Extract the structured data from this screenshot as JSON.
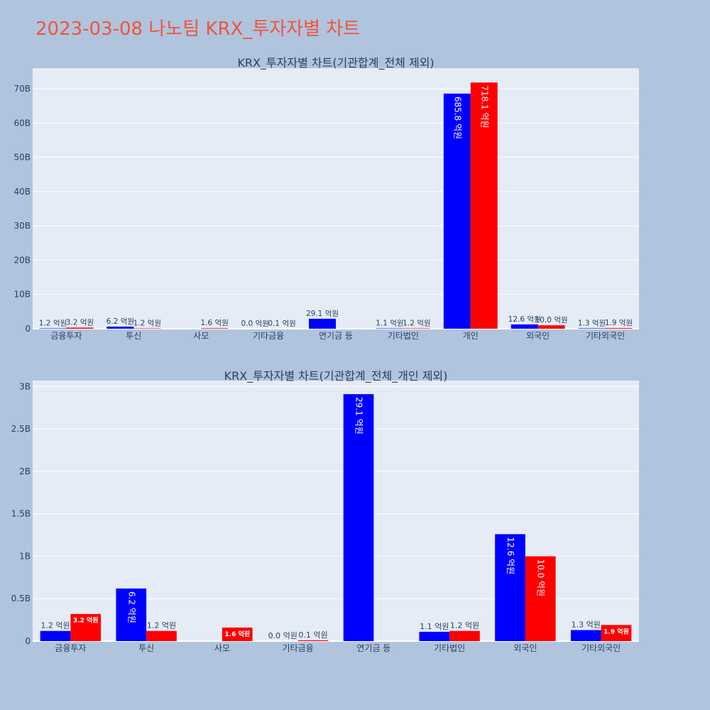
{
  "title": "2023-03-08 나노팀 KRX_투자자별 차트",
  "colors": {
    "page_bg": "#b0c4de",
    "plot_bg": "#e5ecf6",
    "sell": "#0000ff",
    "buy": "#ff0000",
    "title": "#ef553b",
    "text": "#2a3f5f"
  },
  "chart_data": [
    {
      "type": "bar",
      "title": "KRX_투자자별 차트(기관합계_전체 제외)",
      "categories": [
        "금융투자",
        "투신",
        "사모",
        "기타금융",
        "연기금 등",
        "기타법인",
        "개인",
        "외국인",
        "기타외국인"
      ],
      "ylim": [
        0,
        76000000000
      ],
      "yticks": [
        0,
        10000000000,
        20000000000,
        30000000000,
        40000000000,
        50000000000,
        60000000000,
        70000000000
      ],
      "ytick_labels": [
        "0",
        "10B",
        "20B",
        "30B",
        "40B",
        "50B",
        "60B",
        "70B"
      ],
      "grid": true,
      "series": [
        {
          "color": "#0000ff",
          "values": [
            120000000,
            620000000,
            null,
            0,
            2910000000,
            110000000,
            68580000000,
            1260000000,
            130000000
          ],
          "labels": [
            "1.2 억원",
            "6.2 억원",
            "",
            "0.0 억원",
            "29.1 억원",
            "1.1 억원",
            "685.8 억원",
            "12.6 억원",
            "1.3 억원"
          ]
        },
        {
          "color": "#ff0000",
          "values": [
            320000000,
            120000000,
            160000000,
            10000000,
            null,
            120000000,
            71810000000,
            1000000000,
            190000000
          ],
          "labels": [
            "3.2 억원",
            "1.2 억원",
            "1.6 억원",
            "0.1 억원",
            "",
            "1.2 억원",
            "718.1 억원",
            "10.0 억원",
            "1.9 억원"
          ]
        }
      ]
    },
    {
      "type": "bar",
      "title": "KRX_투자자별 차트(기관합계_전체_개인 제외)",
      "categories": [
        "금융투자",
        "투신",
        "사모",
        "기타금융",
        "연기금 등",
        "기타법인",
        "외국인",
        "기타외국인"
      ],
      "ylim": [
        0,
        3070000000
      ],
      "yticks": [
        0,
        500000000,
        1000000000,
        1500000000,
        2000000000,
        2500000000,
        3000000000
      ],
      "ytick_labels": [
        "0",
        "0.5B",
        "1B",
        "1.5B",
        "2B",
        "2.5B",
        "3B"
      ],
      "grid": true,
      "series": [
        {
          "color": "#0000ff",
          "values": [
            120000000,
            620000000,
            null,
            0,
            2910000000,
            110000000,
            1260000000,
            130000000
          ],
          "labels": [
            "1.2 억원",
            "6.2 억원",
            "",
            "0.0 억원",
            "29.1 억원",
            "1.1 억원",
            "12.6 억원",
            "1.3 억원"
          ]
        },
        {
          "color": "#ff0000",
          "values": [
            320000000,
            120000000,
            160000000,
            10000000,
            null,
            120000000,
            1000000000,
            190000000
          ],
          "labels": [
            "3.2 억원",
            "1.2 억원",
            "1.6 억원",
            "0.1 억원",
            "",
            "1.2 억원",
            "10.0 억원",
            "1.9 억원"
          ]
        }
      ]
    }
  ]
}
